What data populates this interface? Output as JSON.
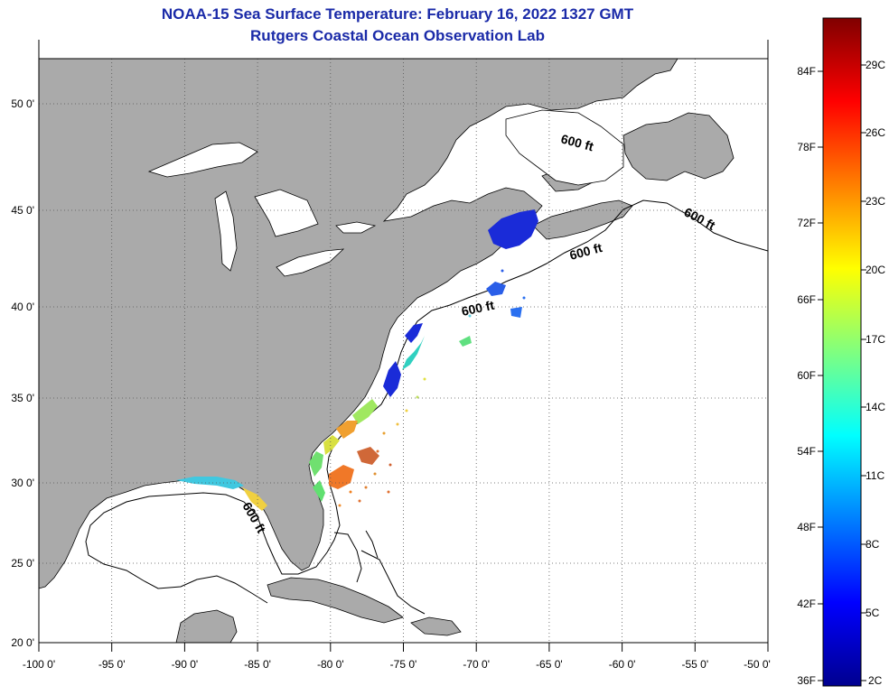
{
  "title": "NOAA-15 Sea Surface Temperature:  February 16, 2022 1327 GMT",
  "subtitle": "Rutgers Coastal Ocean Observation Lab",
  "axes": {
    "lon_labels": [
      "-100 0'",
      "-95 0'",
      "-90 0'",
      "-85 0'",
      "-80 0'",
      "-75 0'",
      "-70 0'",
      "-65 0'",
      "-60 0'",
      "-55 0'",
      "-50 0'"
    ],
    "lat_labels": [
      "20 0'",
      "25 0'",
      "30 0'",
      "35 0'",
      "40 0'",
      "45 0'",
      "50 0'"
    ],
    "lon_range": [
      -100,
      -50
    ],
    "lat_range": [
      20,
      52.5
    ]
  },
  "contour_label": "600 ft",
  "colorbar": {
    "fahrenheit": [
      "36F",
      "42F",
      "48F",
      "54F",
      "60F",
      "66F",
      "72F",
      "78F",
      "84F"
    ],
    "celsius": [
      "2C",
      "5C",
      "8C",
      "11C",
      "14C",
      "17C",
      "20C",
      "23C",
      "26C",
      "29C"
    ],
    "range_f": [
      36,
      88
    ]
  },
  "colors": {
    "land": "#aaaaaa",
    "ocean": "#ffffff",
    "grid": "#555555",
    "title": "#1a2aa8"
  }
}
